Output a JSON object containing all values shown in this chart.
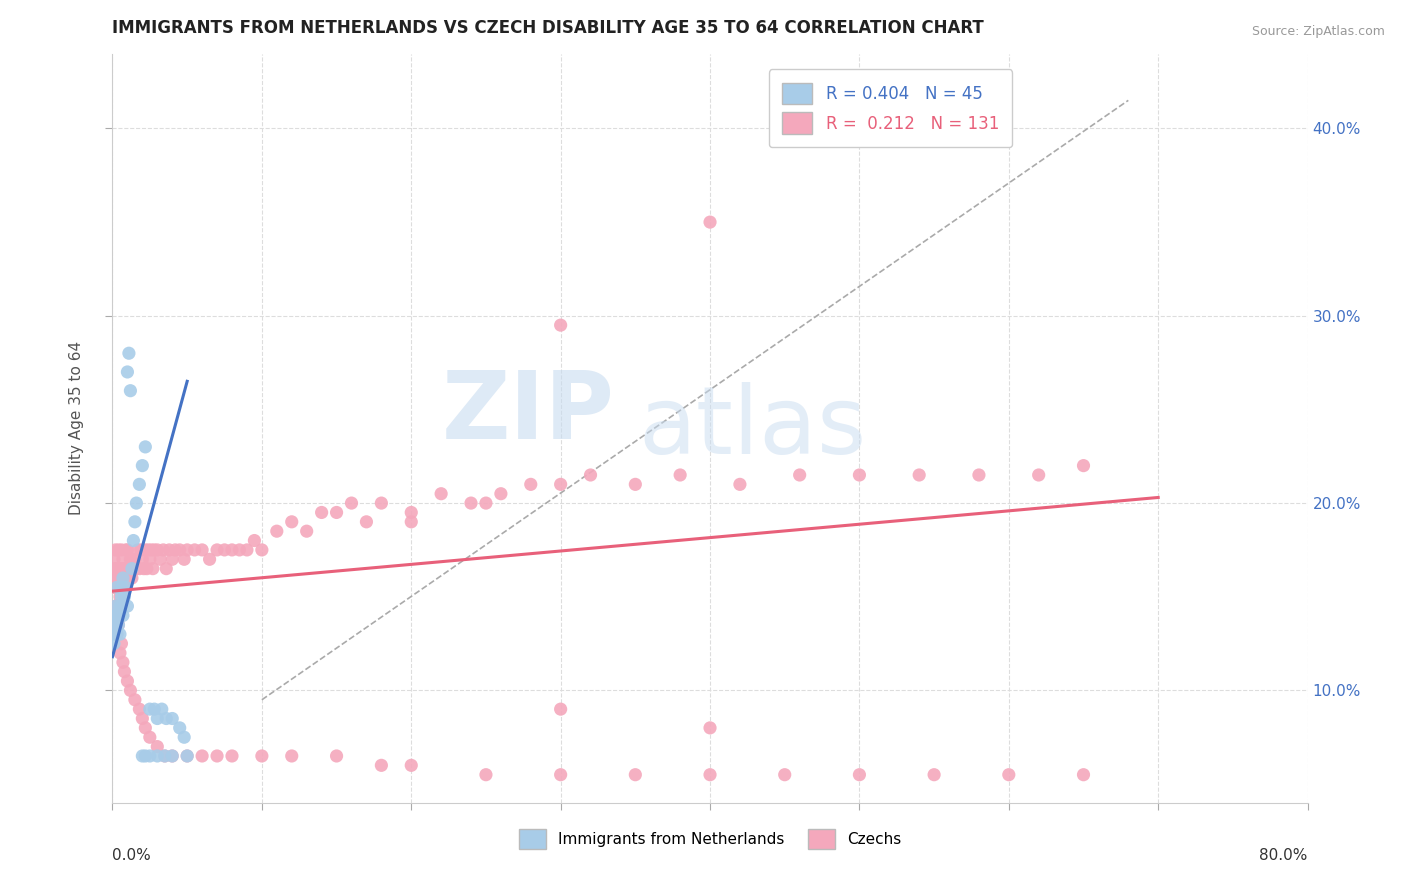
{
  "title": "IMMIGRANTS FROM NETHERLANDS VS CZECH DISABILITY AGE 35 TO 64 CORRELATION CHART",
  "source": "Source: ZipAtlas.com",
  "ylabel": "Disability Age 35 to 64",
  "right_ytick_labels": [
    "10.0%",
    "20.0%",
    "30.0%",
    "40.0%"
  ],
  "right_yticks": [
    0.1,
    0.2,
    0.3,
    0.4
  ],
  "xlim": [
    0.0,
    0.8
  ],
  "ylim": [
    0.04,
    0.44
  ],
  "blue_R": 0.404,
  "blue_N": 45,
  "pink_R": 0.212,
  "pink_N": 131,
  "blue_color": "#A8CCE8",
  "pink_color": "#F4A8BC",
  "blue_line_color": "#4472C4",
  "pink_line_color": "#E8607A",
  "legend_label_blue": "Immigrants from Netherlands",
  "legend_label_pink": "Czechs",
  "watermark_zip": "ZIP",
  "watermark_atlas": "atlas",
  "blue_x": [
    0.001,
    0.001,
    0.001,
    0.002,
    0.002,
    0.002,
    0.003,
    0.003,
    0.003,
    0.004,
    0.004,
    0.005,
    0.005,
    0.006,
    0.006,
    0.007,
    0.007,
    0.008,
    0.009,
    0.01,
    0.01,
    0.011,
    0.012,
    0.013,
    0.014,
    0.015,
    0.016,
    0.018,
    0.02,
    0.022,
    0.025,
    0.028,
    0.03,
    0.033,
    0.036,
    0.04,
    0.045,
    0.048,
    0.02,
    0.022,
    0.025,
    0.03,
    0.035,
    0.04,
    0.05
  ],
  "blue_y": [
    0.135,
    0.13,
    0.125,
    0.14,
    0.135,
    0.145,
    0.13,
    0.14,
    0.155,
    0.135,
    0.14,
    0.13,
    0.145,
    0.15,
    0.155,
    0.14,
    0.16,
    0.15,
    0.155,
    0.145,
    0.27,
    0.28,
    0.26,
    0.165,
    0.18,
    0.19,
    0.2,
    0.21,
    0.22,
    0.23,
    0.09,
    0.09,
    0.085,
    0.09,
    0.085,
    0.085,
    0.08,
    0.075,
    0.065,
    0.065,
    0.065,
    0.065,
    0.065,
    0.065,
    0.065
  ],
  "pink_x": [
    0.001,
    0.001,
    0.001,
    0.001,
    0.002,
    0.002,
    0.002,
    0.002,
    0.003,
    0.003,
    0.003,
    0.004,
    0.004,
    0.004,
    0.005,
    0.005,
    0.005,
    0.006,
    0.006,
    0.007,
    0.007,
    0.008,
    0.008,
    0.009,
    0.009,
    0.01,
    0.01,
    0.011,
    0.012,
    0.013,
    0.014,
    0.015,
    0.016,
    0.017,
    0.018,
    0.019,
    0.02,
    0.021,
    0.022,
    0.023,
    0.024,
    0.025,
    0.026,
    0.027,
    0.028,
    0.03,
    0.032,
    0.034,
    0.036,
    0.038,
    0.04,
    0.042,
    0.045,
    0.048,
    0.05,
    0.055,
    0.06,
    0.065,
    0.07,
    0.075,
    0.08,
    0.085,
    0.09,
    0.095,
    0.1,
    0.11,
    0.12,
    0.13,
    0.14,
    0.15,
    0.16,
    0.17,
    0.18,
    0.2,
    0.22,
    0.24,
    0.26,
    0.28,
    0.3,
    0.32,
    0.35,
    0.38,
    0.42,
    0.46,
    0.5,
    0.54,
    0.58,
    0.62,
    0.65,
    0.001,
    0.002,
    0.003,
    0.004,
    0.005,
    0.006,
    0.007,
    0.008,
    0.01,
    0.012,
    0.015,
    0.018,
    0.02,
    0.022,
    0.025,
    0.03,
    0.035,
    0.04,
    0.05,
    0.06,
    0.07,
    0.08,
    0.1,
    0.12,
    0.15,
    0.18,
    0.2,
    0.25,
    0.3,
    0.35,
    0.4,
    0.45,
    0.5,
    0.55,
    0.6,
    0.65,
    0.4,
    0.3,
    0.25,
    0.2,
    0.3,
    0.4
  ],
  "pink_y": [
    0.16,
    0.155,
    0.17,
    0.14,
    0.155,
    0.165,
    0.145,
    0.175,
    0.145,
    0.165,
    0.155,
    0.16,
    0.155,
    0.175,
    0.15,
    0.165,
    0.155,
    0.165,
    0.175,
    0.16,
    0.17,
    0.155,
    0.165,
    0.175,
    0.155,
    0.165,
    0.175,
    0.16,
    0.17,
    0.16,
    0.165,
    0.17,
    0.165,
    0.175,
    0.165,
    0.175,
    0.17,
    0.165,
    0.175,
    0.165,
    0.175,
    0.17,
    0.175,
    0.165,
    0.175,
    0.175,
    0.17,
    0.175,
    0.165,
    0.175,
    0.17,
    0.175,
    0.175,
    0.17,
    0.175,
    0.175,
    0.175,
    0.17,
    0.175,
    0.175,
    0.175,
    0.175,
    0.175,
    0.18,
    0.175,
    0.185,
    0.19,
    0.185,
    0.195,
    0.195,
    0.2,
    0.19,
    0.2,
    0.195,
    0.205,
    0.2,
    0.205,
    0.21,
    0.21,
    0.215,
    0.21,
    0.215,
    0.21,
    0.215,
    0.215,
    0.215,
    0.215,
    0.215,
    0.22,
    0.135,
    0.14,
    0.13,
    0.135,
    0.12,
    0.125,
    0.115,
    0.11,
    0.105,
    0.1,
    0.095,
    0.09,
    0.085,
    0.08,
    0.075,
    0.07,
    0.065,
    0.065,
    0.065,
    0.065,
    0.065,
    0.065,
    0.065,
    0.065,
    0.065,
    0.06,
    0.06,
    0.055,
    0.055,
    0.055,
    0.055,
    0.055,
    0.055,
    0.055,
    0.055,
    0.055,
    0.08,
    0.09,
    0.2,
    0.19,
    0.295,
    0.35
  ],
  "blue_trendline_x": [
    0.0,
    0.05
  ],
  "blue_trendline_y": [
    0.118,
    0.265
  ],
  "pink_trendline_x": [
    0.0,
    0.7
  ],
  "pink_trendline_y": [
    0.153,
    0.203
  ],
  "ref_line_x": [
    0.1,
    0.68
  ],
  "ref_line_y": [
    0.095,
    0.415
  ],
  "grid_color": "#DDDDDD",
  "background_color": "#FFFFFF",
  "title_fontsize": 12,
  "label_fontsize": 11,
  "tick_fontsize": 11,
  "source_fontsize": 9
}
